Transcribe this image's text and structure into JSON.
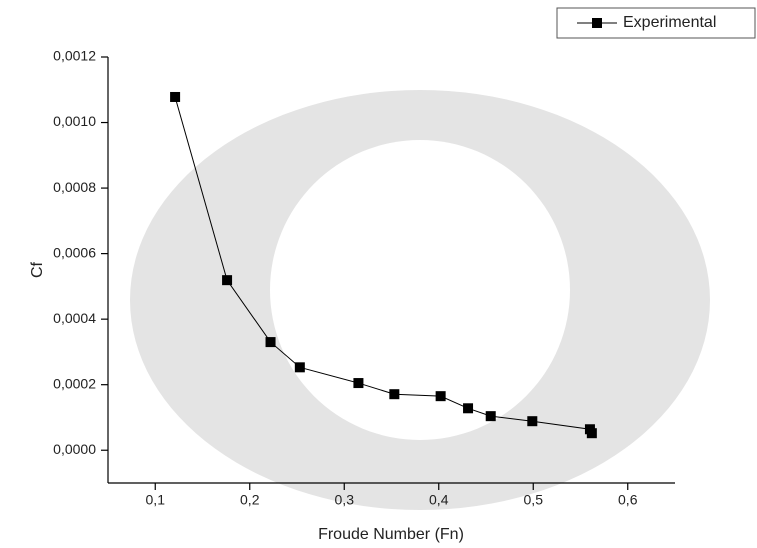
{
  "chart_data": {
    "type": "line",
    "x_label": "Froude Number (Fn)",
    "y_label": "Cf",
    "xlim": [
      0.05,
      0.65
    ],
    "ylim": [
      -0.0001,
      0.0012
    ],
    "xticks": [
      {
        "value": 0.1,
        "label": "0,1"
      },
      {
        "value": 0.2,
        "label": "0,2"
      },
      {
        "value": 0.3,
        "label": "0,3"
      },
      {
        "value": 0.4,
        "label": "0,4"
      },
      {
        "value": 0.5,
        "label": "0,5"
      },
      {
        "value": 0.6,
        "label": "0,6"
      }
    ],
    "yticks": [
      {
        "value": 0,
        "label": "0,0000"
      },
      {
        "value": 0.0002,
        "label": "0,0002"
      },
      {
        "value": 0.0004,
        "label": "0,0004"
      },
      {
        "value": 0.0006,
        "label": "0,0006"
      },
      {
        "value": 0.0008,
        "label": "0,0008"
      },
      {
        "value": 0.001,
        "label": "0,0010"
      },
      {
        "value": 0.0012,
        "label": "0,0012"
      }
    ],
    "legend": "top-right",
    "series": [
      {
        "name": "Experimental",
        "color": "#000000",
        "x": [
          0.121,
          0.176,
          0.222,
          0.253,
          0.315,
          0.353,
          0.402,
          0.431,
          0.455,
          0.499,
          0.56,
          0.562
        ],
        "values": [
          0.001078,
          0.000519,
          0.00033,
          0.000253,
          0.000205,
          0.000171,
          0.000165,
          0.000128,
          0.000104,
          8.86e-05,
          6.4e-05,
          5.2e-05
        ]
      }
    ]
  }
}
